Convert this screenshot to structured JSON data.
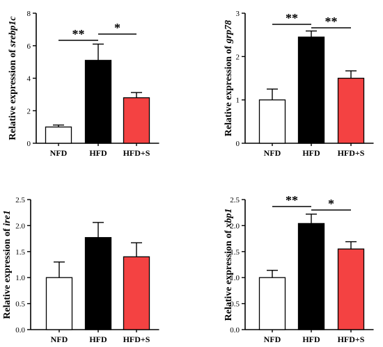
{
  "chart_data": [
    {
      "type": "bar",
      "categories": [
        "NFD",
        "HFD",
        "HFD+S"
      ],
      "values": [
        1.0,
        5.1,
        2.8
      ],
      "errors": [
        0.12,
        1.0,
        0.32
      ],
      "ylabel_prefix": "Relative expression of ",
      "ylabel_gene": "srebp1c",
      "ylim": [
        0,
        8
      ],
      "yticks": [
        "0",
        "2",
        "4",
        "6",
        "8"
      ],
      "significance": [
        {
          "from": 0,
          "to": 1,
          "label": "**"
        },
        {
          "from": 1,
          "to": 2,
          "label": "*"
        }
      ]
    },
    {
      "type": "bar",
      "categories": [
        "NFD",
        "HFD",
        "HFD+S"
      ],
      "values": [
        1.0,
        2.45,
        1.5
      ],
      "errors": [
        0.25,
        0.14,
        0.17
      ],
      "ylabel_prefix": "Relative expression of ",
      "ylabel_gene": "grp78",
      "ylim": [
        0,
        3
      ],
      "yticks": [
        "0",
        "1",
        "2",
        "3"
      ],
      "significance": [
        {
          "from": 0,
          "to": 1,
          "label": "**"
        },
        {
          "from": 1,
          "to": 2,
          "label": "**"
        }
      ]
    },
    {
      "type": "bar",
      "categories": [
        "NFD",
        "HFD",
        "HFD+S"
      ],
      "values": [
        1.0,
        1.77,
        1.4
      ],
      "errors": [
        0.3,
        0.29,
        0.27
      ],
      "ylabel_prefix": "Relative expression of ",
      "ylabel_gene": "ire1",
      "ylim": [
        0,
        2.5
      ],
      "yticks": [
        "0.0",
        "0.5",
        "1.0",
        "1.5",
        "2.0",
        "2.5"
      ],
      "significance": []
    },
    {
      "type": "bar",
      "categories": [
        "NFD",
        "HFD",
        "HFD+S"
      ],
      "values": [
        1.0,
        2.04,
        1.55
      ],
      "errors": [
        0.14,
        0.18,
        0.14
      ],
      "ylabel_prefix": "Relative expression of ",
      "ylabel_gene": "xbp1",
      "ylim": [
        0,
        2.5
      ],
      "yticks": [
        "0.0",
        "0.5",
        "1.0",
        "1.5",
        "2.0",
        "2.5"
      ],
      "significance": [
        {
          "from": 0,
          "to": 1,
          "label": "**"
        },
        {
          "from": 1,
          "to": 2,
          "label": "*"
        }
      ]
    }
  ],
  "bar_colors": [
    "#ffffff",
    "#000000",
    "#f44242"
  ]
}
